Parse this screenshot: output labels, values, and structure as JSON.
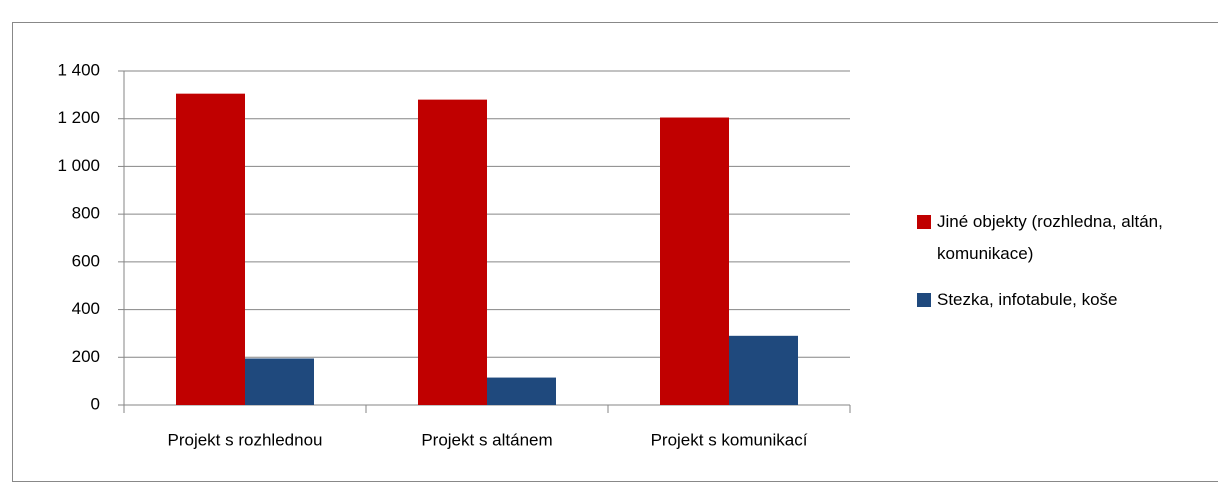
{
  "chart_data": {
    "type": "bar",
    "categories": [
      "Projekt s rozhlednou",
      "Projekt s altánem",
      "Projekt s komunikací"
    ],
    "series": [
      {
        "name": "Jiné objekty (rozhledna, altán, komunikace)",
        "color": "#c00000",
        "values": [
          1305,
          1280,
          1205
        ]
      },
      {
        "name": "Stezka, infotabule, koše",
        "color": "#1f497d",
        "values": [
          195,
          115,
          290
        ]
      }
    ],
    "ylim": [
      0,
      1400
    ],
    "yticks": [
      0,
      200,
      400,
      600,
      800,
      {
        "value": 1000,
        "label": "1 000"
      },
      {
        "value": 1200,
        "label": "1 200"
      },
      {
        "value": 1400,
        "label": "1 400"
      }
    ],
    "grid": true,
    "legend": "right"
  }
}
